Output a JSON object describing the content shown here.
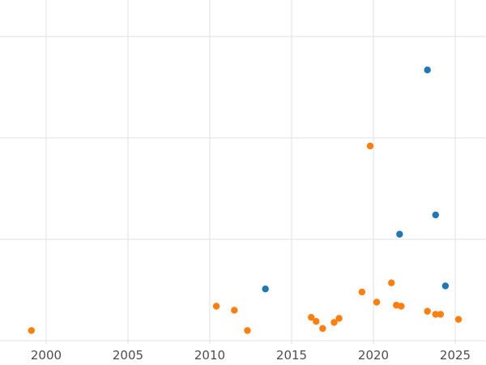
{
  "chart_data": {
    "type": "scatter",
    "title": "",
    "xlabel": "",
    "ylabel": "",
    "xlim": [
      1997.18,
      2026.88
    ],
    "ylim": [
      -0.032,
      3.36
    ],
    "x_ticks": [
      2000,
      2005,
      2010,
      2015,
      2020,
      2025
    ],
    "x_tick_labels": [
      "2000",
      "2005",
      "2010",
      "2015",
      "2020",
      "2025"
    ],
    "y_ticks": [
      0,
      1,
      2,
      3
    ],
    "y_tick_labels": [],
    "grid": true,
    "legend": false,
    "marker_radius": 4.2,
    "colors": {
      "series_blue": "#1f77b4",
      "series_orange": "#ff7f0e",
      "grid": "#e2e2e2",
      "tick_label": "#4d4d4d",
      "background": "#ffffff"
    },
    "series": [
      {
        "name": "blue",
        "color_key": "series_blue",
        "points": [
          [
            2013.4,
            0.51
          ],
          [
            2021.6,
            1.05
          ],
          [
            2023.3,
            2.67
          ],
          [
            2023.8,
            1.24
          ],
          [
            2024.4,
            0.54
          ]
        ]
      },
      {
        "name": "orange",
        "color_key": "series_orange",
        "points": [
          [
            1999.1,
            0.1
          ],
          [
            2010.4,
            0.34
          ],
          [
            2011.5,
            0.3
          ],
          [
            2012.3,
            0.1
          ],
          [
            2016.2,
            0.23
          ],
          [
            2016.5,
            0.19
          ],
          [
            2016.9,
            0.12
          ],
          [
            2017.6,
            0.18
          ],
          [
            2017.9,
            0.22
          ],
          [
            2019.3,
            0.48
          ],
          [
            2019.8,
            1.92
          ],
          [
            2020.2,
            0.38
          ],
          [
            2021.1,
            0.57
          ],
          [
            2021.4,
            0.35
          ],
          [
            2021.7,
            0.34
          ],
          [
            2023.3,
            0.29
          ],
          [
            2023.8,
            0.26
          ],
          [
            2024.1,
            0.26
          ],
          [
            2025.2,
            0.21
          ]
        ]
      }
    ]
  }
}
